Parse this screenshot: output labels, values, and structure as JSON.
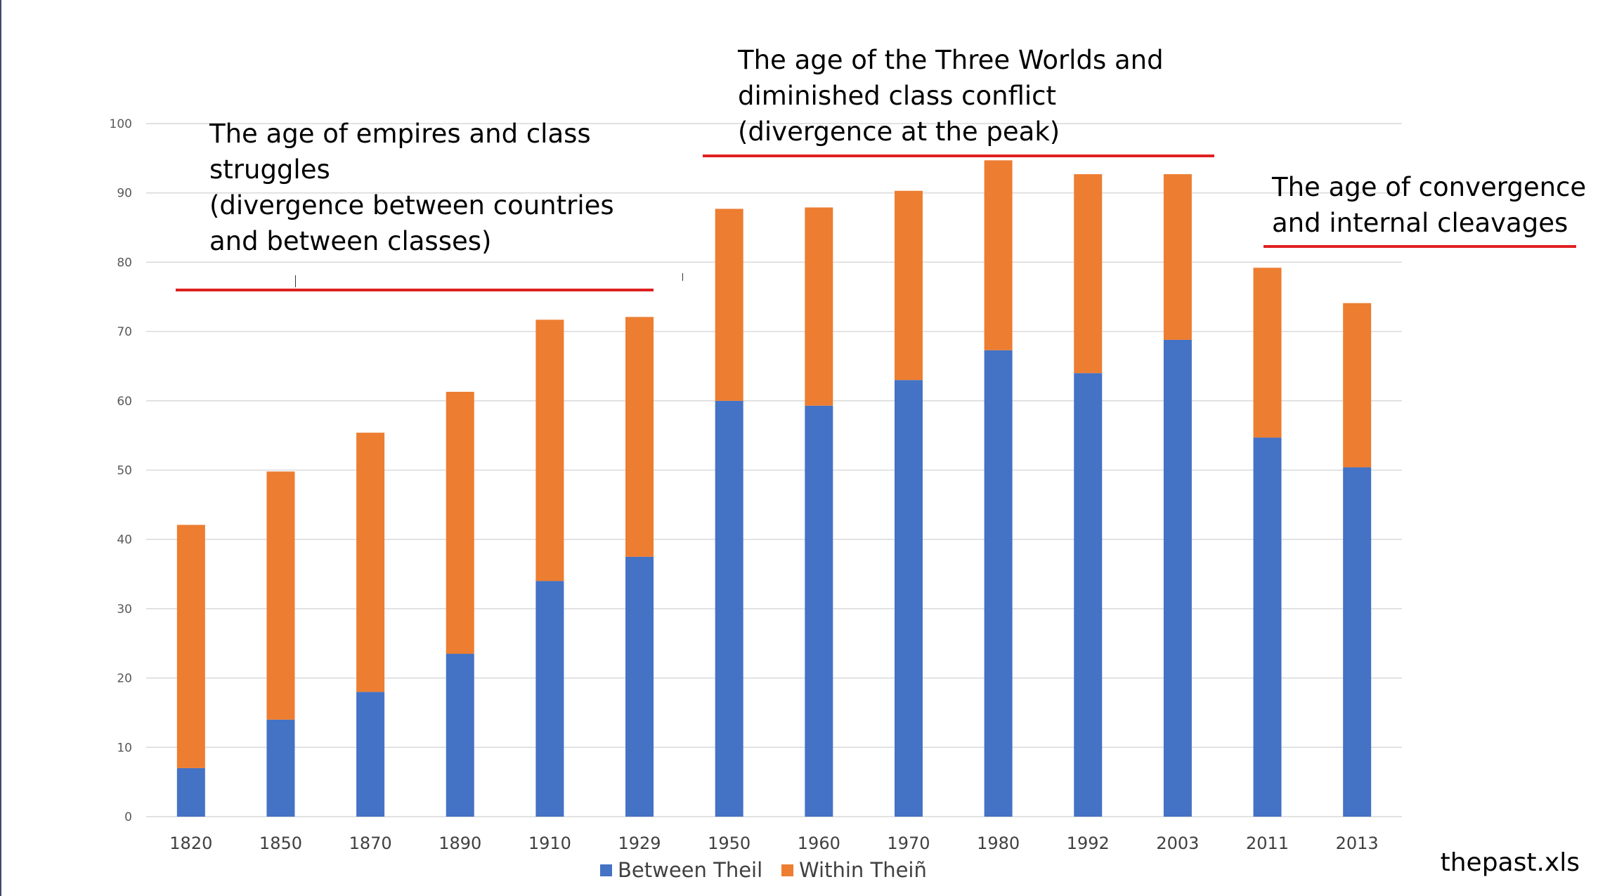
{
  "chart_data": {
    "type": "bar",
    "stacked": true,
    "categories": [
      "1820",
      "1850",
      "1870",
      "1890",
      "1910",
      "1929",
      "1950",
      "1960",
      "1970",
      "1980",
      "1992",
      "2003",
      "2011",
      "2013"
    ],
    "series": [
      {
        "name": "Between Theil",
        "color": "#4472c4",
        "values": [
          7,
          14,
          18,
          23.5,
          34,
          37.5,
          60,
          59.3,
          63,
          67.3,
          64,
          68.8,
          54.7,
          50.4
        ]
      },
      {
        "name": "Within Theiñ",
        "color": "#ed7d31",
        "values": [
          35.1,
          35.8,
          37.4,
          37.8,
          37.7,
          34.6,
          27.7,
          28.6,
          27.3,
          27.4,
          28.7,
          23.9,
          24.5,
          23.7
        ]
      }
    ],
    "yticks": [
      "0",
      "10",
      "20",
      "30",
      "40",
      "50",
      "60",
      "70",
      "80",
      "90",
      "100"
    ],
    "ylim": [
      0,
      100
    ],
    "grid": true,
    "legend": "bottom",
    "title": "",
    "xlabel": "",
    "ylabel": ""
  },
  "annotations": {
    "empires": [
      "The age of empires and class",
      "struggles",
      "(divergence between countries",
      "and between classes)"
    ],
    "three_worlds": [
      "The age of the Three Worlds  and",
      "diminished class conflict",
      "(divergence at the peak)"
    ],
    "convergence": [
      "The age of convergence",
      "and internal cleavages"
    ]
  },
  "colors": {
    "annotation_line": "#e02020",
    "grid": "#d9d9d9"
  },
  "watermark": "thepast.xls"
}
